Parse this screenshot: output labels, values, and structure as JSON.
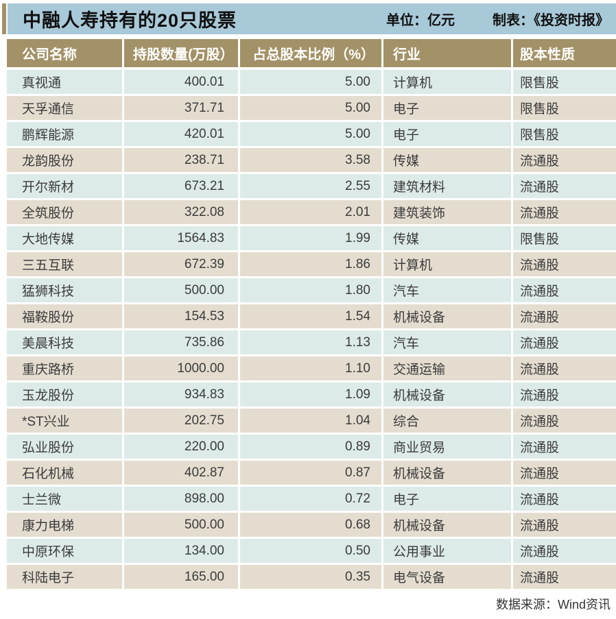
{
  "header": {
    "title": "中融人寿持有的20只股票",
    "unit_label": "单位：亿元",
    "maker_label": "制表：《投资时报》"
  },
  "footer": {
    "source_label": "数据来源：Wind资讯"
  },
  "colors": {
    "accent_khaki": "#a39267",
    "title_bar_blue": "#a8c9d8",
    "row_teal": "#dcebe8",
    "row_beige": "#e4ddcf",
    "header_text": "#ffffff",
    "body_text": "#3b3b3b"
  },
  "chart_data": {
    "type": "table",
    "title": "中融人寿持有的20只股票",
    "unit": "亿元",
    "columns": [
      "公司名称",
      "持股数量(万股）",
      "占总股本比例（%）",
      "行业",
      "股本性质"
    ],
    "rows": [
      [
        "真视通",
        "400.01",
        "5.00",
        "计算机",
        "限售股"
      ],
      [
        "天孚通信",
        "371.71",
        "5.00",
        "电子",
        "限售股"
      ],
      [
        "鹏辉能源",
        "420.01",
        "5.00",
        "电子",
        "限售股"
      ],
      [
        "龙韵股份",
        "238.71",
        "3.58",
        "传媒",
        "流通股"
      ],
      [
        "开尔新材",
        "673.21",
        "2.55",
        "建筑材料",
        "流通股"
      ],
      [
        "全筑股份",
        "322.08",
        "2.01",
        "建筑装饰",
        "流通股"
      ],
      [
        "大地传媒",
        "1564.83",
        "1.99",
        "传媒",
        "限售股"
      ],
      [
        "三五互联",
        "672.39",
        "1.86",
        "计算机",
        "流通股"
      ],
      [
        "猛狮科技",
        "500.00",
        "1.80",
        "汽车",
        "流通股"
      ],
      [
        "福鞍股份",
        "154.53",
        "1.54",
        "机械设备",
        "流通股"
      ],
      [
        "美晨科技",
        "735.86",
        "1.13",
        "汽车",
        "流通股"
      ],
      [
        "重庆路桥",
        "1000.00",
        "1.10",
        "交通运输",
        "流通股"
      ],
      [
        "玉龙股份",
        "934.83",
        "1.09",
        "机械设备",
        "流通股"
      ],
      [
        "*ST兴业",
        "202.75",
        "1.04",
        "综合",
        "流通股"
      ],
      [
        "弘业股份",
        "220.00",
        "0.89",
        "商业贸易",
        "流通股"
      ],
      [
        "石化机械",
        "402.87",
        "0.87",
        "机械设备",
        "流通股"
      ],
      [
        "士兰微",
        "898.00",
        "0.72",
        "电子",
        "流通股"
      ],
      [
        "康力电梯",
        "500.00",
        "0.68",
        "机械设备",
        "流通股"
      ],
      [
        "中原环保",
        "134.00",
        "0.50",
        "公用事业",
        "流通股"
      ],
      [
        "科陆电子",
        "165.00",
        "0.35",
        "电气设备",
        "流通股"
      ]
    ]
  }
}
